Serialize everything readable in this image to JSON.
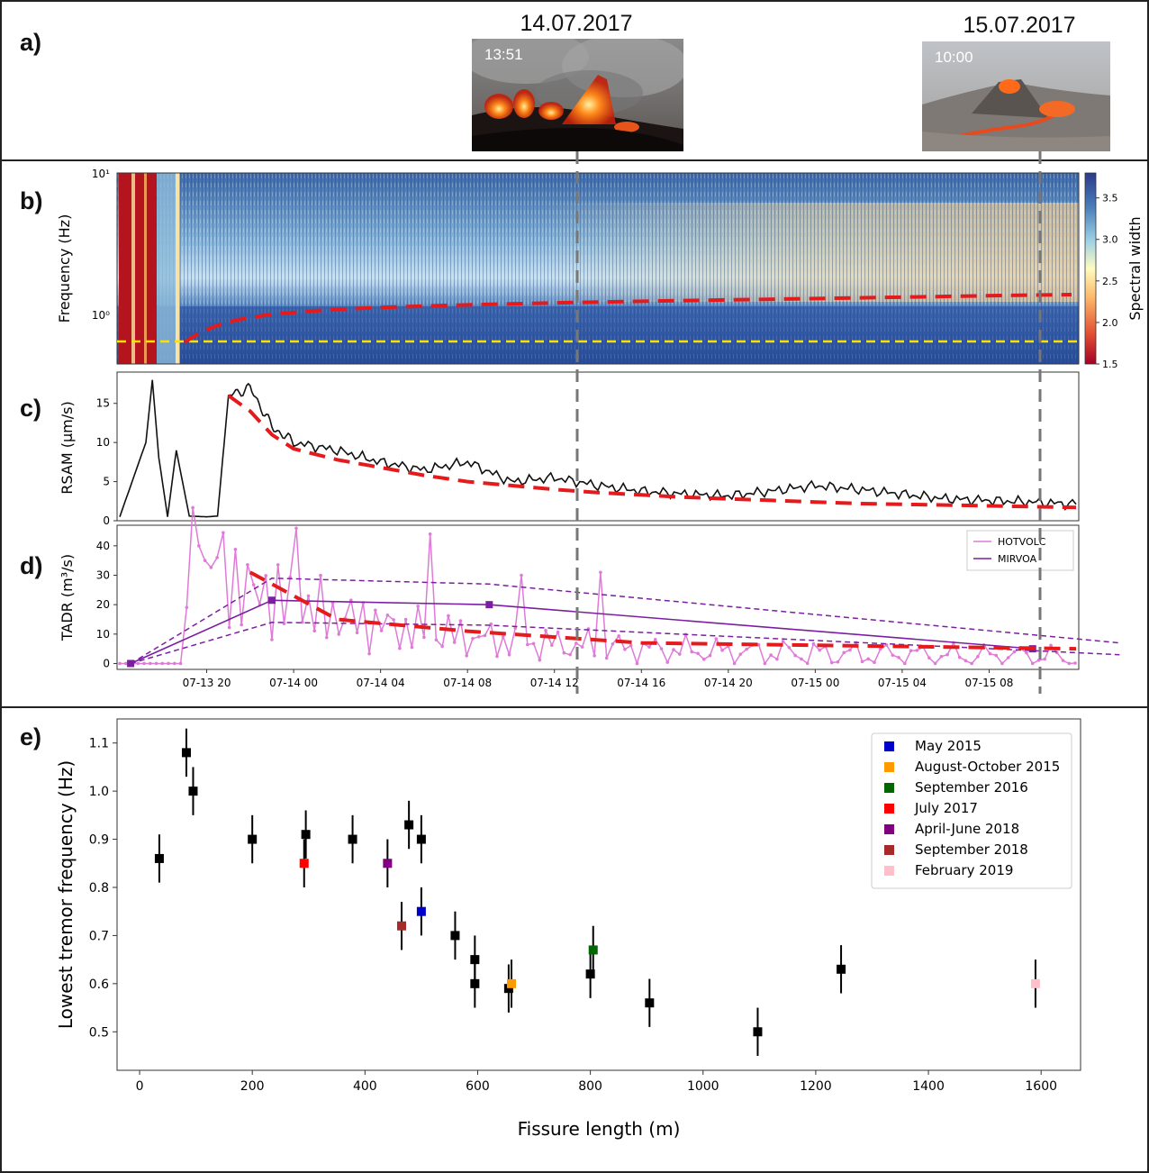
{
  "panels": {
    "a": "a)",
    "b": "b)",
    "c": "c)",
    "d": "d)",
    "e": "e)"
  },
  "photos": [
    {
      "date": "14.07.2017",
      "time": "13:51"
    },
    {
      "date": "15.07.2017",
      "time": "10:00"
    }
  ],
  "colors": {
    "trend": "#e41a1c",
    "yellow_line": "#ffe000",
    "dashed_marker": "#777777",
    "hotvolc": "#e07ad8",
    "mirova": "#7b1fa2"
  },
  "chart_data": [
    {
      "id": "b",
      "type": "heatmap",
      "ylabel": "Frequency (Hz)",
      "yscale": "log",
      "ytick_labels": [
        "10¹",
        "10⁰"
      ],
      "colorbar": {
        "label": "Spectral width",
        "ticks": [
          "3.5",
          "3.0",
          "2.5",
          "2.0",
          "1.5"
        ],
        "range": [
          1.5,
          3.8
        ]
      },
      "lowest_frequency_line_hz": 0.75
    },
    {
      "id": "c",
      "type": "line",
      "ylabel": "RSAM (µm/s)",
      "yticks": [
        "0",
        "5",
        "10",
        "15"
      ],
      "ylim": [
        0,
        19
      ],
      "x_hours_since_07_13_16": [
        0,
        1.2,
        1.5,
        1.8,
        2.2,
        2.6,
        3.2,
        4,
        4.5,
        5,
        6,
        7,
        8,
        10,
        12,
        14,
        16,
        18,
        20,
        22,
        24,
        26,
        28,
        30,
        32,
        34,
        36,
        38,
        40,
        42,
        44
      ],
      "rsam": [
        0.5,
        10,
        18,
        8,
        0.5,
        9,
        0.6,
        0.5,
        0.6,
        16,
        17,
        12,
        10,
        9,
        7.5,
        6.5,
        7.5,
        5,
        5.5,
        4.5,
        3.8,
        3.4,
        3.2,
        3.8,
        4.5,
        4.0,
        3.4,
        2.8,
        2.6,
        2.4,
        2.1
      ],
      "trend_rsam": [
        null,
        null,
        null,
        null,
        null,
        null,
        null,
        null,
        null,
        16,
        14,
        11,
        9.2,
        7.8,
        6.8,
        5.8,
        5.0,
        4.5,
        4.0,
        3.6,
        3.3,
        3.0,
        2.8,
        2.6,
        2.4,
        2.2,
        2.1,
        2.0,
        1.9,
        1.8,
        1.7
      ]
    },
    {
      "id": "d",
      "type": "line",
      "ylabel": "TADR (m³/s)",
      "yticks": [
        "0",
        "10",
        "20",
        "30",
        "40"
      ],
      "ylim": [
        -2,
        47
      ],
      "xticks": [
        "07-13 20",
        "07-14 00",
        "07-14 04",
        "07-14 08",
        "07-14 12",
        "07-14 16",
        "07-14 20",
        "07-15 00",
        "07-15 04",
        "07-15 08"
      ],
      "series": [
        {
          "name": "HOTVOLC"
        },
        {
          "name": "MIRVOA"
        }
      ],
      "hotvolc_peaks": [
        40,
        36,
        46,
        44,
        30,
        31,
        10,
        5,
        5,
        9
      ],
      "mirova_points": [
        [
          0.5,
          0
        ],
        [
          7,
          21.5
        ],
        [
          17,
          20
        ],
        [
          42,
          5
        ]
      ],
      "mirova_upper": [
        [
          0.5,
          0
        ],
        [
          7,
          29
        ],
        [
          17,
          27
        ],
        [
          46,
          7
        ]
      ],
      "mirova_lower": [
        [
          0.5,
          0
        ],
        [
          7,
          14
        ],
        [
          17,
          13
        ],
        [
          46,
          3
        ]
      ],
      "trend_tadr": [
        [
          6,
          31
        ],
        [
          10,
          15
        ],
        [
          16,
          11
        ],
        [
          24,
          7
        ],
        [
          34,
          6
        ],
        [
          44,
          5
        ]
      ]
    },
    {
      "id": "e",
      "type": "scatter",
      "xlabel": "Fissure length (m)",
      "ylabel": "Lowest tremor frequency (Hz)",
      "xlim": [
        -40,
        1670
      ],
      "ylim": [
        0.42,
        1.15
      ],
      "xticks": [
        0,
        200,
        400,
        600,
        800,
        1000,
        1200,
        1400,
        1600
      ],
      "yticks": [
        0.5,
        0.6,
        0.7,
        0.8,
        0.9,
        1.0,
        1.1
      ],
      "error_hz": 0.05,
      "legend": [
        {
          "name": "May 2015",
          "color": "#0000cc"
        },
        {
          "name": "August-October 2015",
          "color": "#ff9900"
        },
        {
          "name": "September 2016",
          "color": "#006600"
        },
        {
          "name": "July 2017",
          "color": "#ff0000"
        },
        {
          "name": "April-June 2018",
          "color": "#800080"
        },
        {
          "name": "September 2018",
          "color": "#a52a2a"
        },
        {
          "name": "February 2019",
          "color": "#ffc0cb"
        }
      ],
      "points": [
        {
          "x": 35,
          "y": 0.86,
          "color": "#000000"
        },
        {
          "x": 83,
          "y": 1.08,
          "color": "#000000"
        },
        {
          "x": 95,
          "y": 1.0,
          "color": "#000000"
        },
        {
          "x": 200,
          "y": 0.9,
          "color": "#000000"
        },
        {
          "x": 295,
          "y": 0.91,
          "color": "#000000"
        },
        {
          "x": 292,
          "y": 0.85,
          "color": "#ff0000"
        },
        {
          "x": 378,
          "y": 0.9,
          "color": "#000000"
        },
        {
          "x": 440,
          "y": 0.85,
          "color": "#800080"
        },
        {
          "x": 465,
          "y": 0.72,
          "color": "#a52a2a"
        },
        {
          "x": 478,
          "y": 0.93,
          "color": "#000000"
        },
        {
          "x": 500,
          "y": 0.9,
          "color": "#000000"
        },
        {
          "x": 500,
          "y": 0.75,
          "color": "#0000cc"
        },
        {
          "x": 560,
          "y": 0.7,
          "color": "#000000"
        },
        {
          "x": 595,
          "y": 0.65,
          "color": "#000000"
        },
        {
          "x": 595,
          "y": 0.6,
          "color": "#000000"
        },
        {
          "x": 655,
          "y": 0.59,
          "color": "#000000"
        },
        {
          "x": 660,
          "y": 0.6,
          "color": "#ff9900"
        },
        {
          "x": 800,
          "y": 0.62,
          "color": "#000000"
        },
        {
          "x": 805,
          "y": 0.67,
          "color": "#006600"
        },
        {
          "x": 905,
          "y": 0.56,
          "color": "#000000"
        },
        {
          "x": 1097,
          "y": 0.5,
          "color": "#000000"
        },
        {
          "x": 1245,
          "y": 0.63,
          "color": "#000000"
        },
        {
          "x": 1590,
          "y": 0.6,
          "color": "#ffc0cb"
        }
      ]
    }
  ]
}
